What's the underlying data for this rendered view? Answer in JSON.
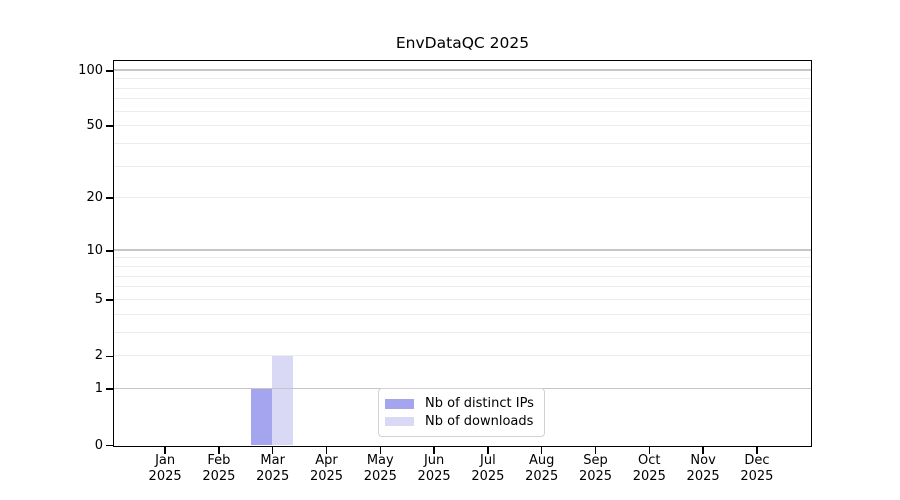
{
  "figure": {
    "title": "EnvDataQC 2025"
  },
  "chart_data": {
    "type": "bar",
    "title": "EnvDataQC 2025",
    "x_categories": [
      "Jan",
      "Feb",
      "Mar",
      "Apr",
      "May",
      "Jun",
      "Jul",
      "Aug",
      "Sep",
      "Oct",
      "Nov",
      "Dec"
    ],
    "x_year": "2025",
    "series": [
      {
        "name": "Nb of distinct IPs",
        "color": "#a5a5ef",
        "values": [
          0,
          0,
          1,
          0,
          0,
          0,
          0,
          0,
          0,
          0,
          0,
          0
        ]
      },
      {
        "name": "Nb of downloads",
        "color": "#d9d9f6",
        "values": [
          0,
          0,
          2,
          0,
          0,
          0,
          0,
          0,
          0,
          0,
          0,
          0
        ]
      }
    ],
    "yscale": "log1p",
    "ylim": [
      0,
      112
    ],
    "yticks": [
      0,
      1,
      2,
      5,
      10,
      20,
      50,
      100
    ],
    "minor_gridlines": [
      3,
      4,
      6,
      7,
      8,
      9,
      30,
      40,
      60,
      70,
      80,
      90
    ],
    "decade_gridlines": [
      1,
      10,
      100
    ],
    "grid": "horizontal",
    "legend_position": "lower center",
    "colors": {
      "grid_minor": "#ececec",
      "grid_decade": "#c6c6c8",
      "axis": "#000000",
      "background": "#ffffff"
    }
  }
}
